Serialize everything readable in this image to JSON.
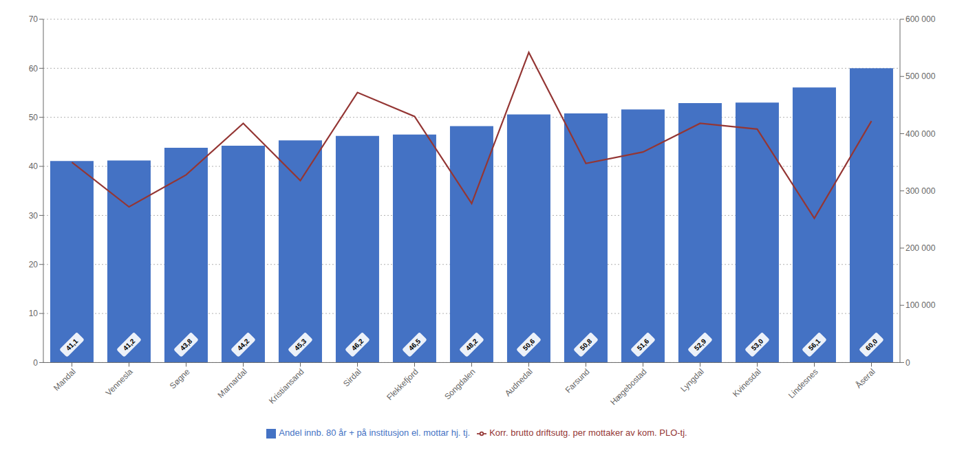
{
  "chart_data": {
    "type": "bar",
    "categories": [
      "Mandal",
      "Vennesla",
      "Søgne",
      "Marnardal",
      "Kristiansand",
      "Sirdal",
      "Flekkefjord",
      "Songdalen",
      "Audnedal",
      "Farsund",
      "Hægebostad",
      "Lyngdal",
      "Kvinesdal",
      "Lindesnes",
      "Åseral"
    ],
    "series": [
      {
        "name": "Andel innb. 80 år + på institusjon el. mottar hj. tj.",
        "type": "bar",
        "color": "#4472C4",
        "values": [
          41.1,
          41.2,
          43.8,
          44.2,
          45.3,
          46.2,
          46.5,
          48.2,
          50.6,
          50.8,
          51.6,
          52.9,
          53.0,
          56.1,
          60.0
        ],
        "value_labels": [
          "41,1",
          "41,2",
          "43,8",
          "44,2",
          "45,3",
          "46,2",
          "46,5",
          "48,2",
          "50,6",
          "50,8",
          "51,6",
          "52,9",
          "53,0",
          "56,1",
          "60,0"
        ]
      },
      {
        "name": "Korr. brutto driftsutg. per mottaker av kom. PLO-tj.",
        "type": "line",
        "color": "#943634",
        "axis": "y2",
        "values": [
          350000,
          272000,
          328000,
          418000,
          318000,
          472000,
          430000,
          278000,
          542000,
          348000,
          368000,
          418000,
          408000,
          252000,
          422000
        ]
      }
    ],
    "ylim": [
      0,
      70
    ],
    "yticks": [
      0,
      10,
      20,
      30,
      40,
      50,
      60,
      70
    ],
    "y2lim": [
      0,
      600000
    ],
    "y2ticks": [
      0,
      {
        "value": 100000,
        "label": "100 000"
      },
      {
        "value": 200000,
        "label": "200 000"
      },
      {
        "value": 300000,
        "label": "300 000"
      },
      {
        "value": 400000,
        "label": "400 000"
      },
      {
        "value": 500000,
        "label": "500 000"
      },
      {
        "value": 600000,
        "label": "600 000"
      }
    ],
    "grid": true,
    "legend": "bottom",
    "data_labels": true
  }
}
